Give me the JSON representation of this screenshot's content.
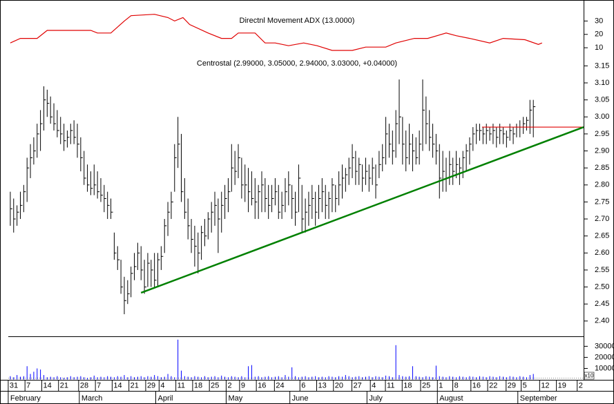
{
  "x_axis": {
    "xlim": [
      -0.6,
      171
    ],
    "xticks": [
      {
        "value": 0,
        "label": "31"
      },
      {
        "value": 5,
        "label": "7"
      },
      {
        "value": 10,
        "label": "14"
      },
      {
        "value": 15,
        "label": "21"
      },
      {
        "value": 21,
        "label": "28"
      },
      {
        "value": 26,
        "label": "7"
      },
      {
        "value": 31,
        "label": "14"
      },
      {
        "value": 36,
        "label": "21"
      },
      {
        "value": 41,
        "label": "29"
      },
      {
        "value": 45,
        "label": "4"
      },
      {
        "value": 50,
        "label": "11"
      },
      {
        "value": 55,
        "label": "18"
      },
      {
        "value": 60,
        "label": "25"
      },
      {
        "value": 65,
        "label": "2"
      },
      {
        "value": 69,
        "label": "9"
      },
      {
        "value": 74,
        "label": "16"
      },
      {
        "value": 79.4,
        "label": "24"
      },
      {
        "value": 87,
        "label": "6"
      },
      {
        "value": 92,
        "label": "13"
      },
      {
        "value": 97,
        "label": "20"
      },
      {
        "value": 102.5,
        "label": "27"
      },
      {
        "value": 108,
        "label": "4"
      },
      {
        "value": 112.5,
        "label": "11"
      },
      {
        "value": 117.5,
        "label": "18"
      },
      {
        "value": 123,
        "label": "25"
      },
      {
        "value": 128,
        "label": "1"
      },
      {
        "value": 132.6,
        "label": "8"
      },
      {
        "value": 138,
        "label": "16"
      },
      {
        "value": 143,
        "label": "22"
      },
      {
        "value": 148.5,
        "label": "29"
      },
      {
        "value": 153,
        "label": "5"
      },
      {
        "value": 158.5,
        "label": "12"
      },
      {
        "value": 163.5,
        "label": "19"
      },
      {
        "value": 169.7,
        "label": "2"
      }
    ],
    "months": [
      {
        "value": 0,
        "label": "February"
      },
      {
        "value": 21.2,
        "label": "March"
      },
      {
        "value": 44,
        "label": "April"
      },
      {
        "value": 65,
        "label": "May"
      },
      {
        "value": 84,
        "label": "June"
      },
      {
        "value": 107,
        "label": "July"
      },
      {
        "value": 128,
        "label": "August"
      },
      {
        "value": 152,
        "label": "September"
      }
    ]
  },
  "chart_data": [
    {
      "type": "line",
      "title": "Directnl Movement ADX (13.0000)",
      "color": "#e00000",
      "ylim": [
        0,
        39
      ],
      "yticks": [
        10,
        20,
        30
      ],
      "x": [
        0,
        3,
        8,
        11,
        24,
        26,
        30,
        34,
        36,
        43,
        47,
        49,
        51.5,
        53.5,
        59,
        63,
        66,
        68,
        73,
        76,
        79,
        83,
        87.5,
        91.5,
        96,
        102,
        106,
        112,
        115,
        120.5,
        124.5,
        130,
        133,
        137,
        143,
        147,
        153.5,
        157.5,
        158.6
      ],
      "values": [
        13.6,
        17,
        17,
        23,
        23,
        21,
        21,
        30,
        34,
        35,
        32.6,
        30,
        32.6,
        27.4,
        21,
        17,
        17,
        21,
        21,
        13.6,
        13.6,
        11.5,
        13.6,
        11.5,
        8,
        8,
        10.5,
        10.5,
        13.6,
        17,
        17,
        21,
        19,
        17,
        13.6,
        17,
        16,
        12.5,
        13.6
      ]
    },
    {
      "type": "ohlc",
      "title": "Centrostal (2.99000, 3.05000, 2.94000, 3.03000, +0.04000)",
      "color": "#000000",
      "ylim": [
        2.355,
        3.165
      ],
      "yticks": [
        {
          "value": 2.4,
          "label": "2.40"
        },
        {
          "value": 2.45,
          "label": "2.45"
        },
        {
          "value": 2.5,
          "label": "2.50"
        },
        {
          "value": 2.55,
          "label": "2.55"
        },
        {
          "value": 2.6,
          "label": "2.60"
        },
        {
          "value": 2.65,
          "label": "2.65"
        },
        {
          "value": 2.7,
          "label": "2.70"
        },
        {
          "value": 2.75,
          "label": "2.75"
        },
        {
          "value": 2.8,
          "label": "2.80"
        },
        {
          "value": 2.85,
          "label": "2.85"
        },
        {
          "value": 2.9,
          "label": "2.90"
        },
        {
          "value": 2.95,
          "label": "2.95"
        },
        {
          "value": 3.0,
          "label": "3.00"
        },
        {
          "value": 3.05,
          "label": "3.05"
        },
        {
          "value": 3.1,
          "label": "3.10"
        },
        {
          "value": 3.15,
          "label": "3.15"
        }
      ],
      "bars": [
        [
          2.78,
          2.68,
          2.73
        ],
        [
          2.76,
          2.66,
          2.7
        ],
        [
          2.74,
          2.68,
          2.72
        ],
        [
          2.78,
          2.7,
          2.74
        ],
        [
          2.8,
          2.72,
          2.78
        ],
        [
          2.88,
          2.75,
          2.85
        ],
        [
          2.92,
          2.82,
          2.88
        ],
        [
          2.94,
          2.86,
          2.9
        ],
        [
          2.98,
          2.88,
          2.95
        ],
        [
          3.02,
          2.9,
          2.98
        ],
        [
          3.09,
          2.96,
          3.05
        ],
        [
          3.08,
          3.0,
          3.04
        ],
        [
          3.06,
          2.98,
          3.0
        ],
        [
          3.04,
          2.96,
          2.98
        ],
        [
          3.02,
          2.94,
          2.96
        ],
        [
          3.0,
          2.92,
          2.95
        ],
        [
          2.98,
          2.9,
          2.93
        ],
        [
          2.96,
          2.91,
          2.94
        ],
        [
          2.98,
          2.92,
          2.96
        ],
        [
          2.99,
          2.92,
          2.94
        ],
        [
          2.98,
          2.88,
          2.92
        ],
        [
          2.94,
          2.84,
          2.88
        ],
        [
          2.9,
          2.8,
          2.82
        ],
        [
          2.86,
          2.78,
          2.8
        ],
        [
          2.84,
          2.77,
          2.79
        ],
        [
          2.86,
          2.77,
          2.8
        ],
        [
          2.84,
          2.76,
          2.78
        ],
        [
          2.82,
          2.75,
          2.77
        ],
        [
          2.8,
          2.72,
          2.76
        ],
        [
          2.78,
          2.7,
          2.74
        ],
        [
          2.76,
          2.7,
          2.72
        ],
        [
          2.66,
          2.58,
          2.6
        ],
        [
          2.62,
          2.55,
          2.58
        ],
        [
          2.58,
          2.48,
          2.5
        ],
        [
          2.53,
          2.42,
          2.46
        ],
        [
          2.52,
          2.45,
          2.48
        ],
        [
          2.56,
          2.47,
          2.54
        ],
        [
          2.6,
          2.52,
          2.56
        ],
        [
          2.63,
          2.55,
          2.6
        ],
        [
          2.62,
          2.52,
          2.55
        ],
        [
          2.58,
          2.48,
          2.5
        ],
        [
          2.6,
          2.5,
          2.57
        ],
        [
          2.58,
          2.5,
          2.55
        ],
        [
          2.6,
          2.5,
          2.52
        ],
        [
          2.6,
          2.5,
          2.58
        ],
        [
          2.62,
          2.55,
          2.59
        ],
        [
          2.7,
          2.6,
          2.68
        ],
        [
          2.75,
          2.65,
          2.72
        ],
        [
          2.78,
          2.7,
          2.75
        ],
        [
          2.92,
          2.78,
          2.88
        ],
        [
          3.0,
          2.85,
          2.92
        ],
        [
          2.95,
          2.75,
          2.78
        ],
        [
          2.82,
          2.7,
          2.72
        ],
        [
          2.76,
          2.64,
          2.68
        ],
        [
          2.7,
          2.6,
          2.64
        ],
        [
          2.68,
          2.56,
          2.62
        ],
        [
          2.66,
          2.54,
          2.6
        ],
        [
          2.68,
          2.58,
          2.66
        ],
        [
          2.7,
          2.62,
          2.65
        ],
        [
          2.72,
          2.64,
          2.7
        ],
        [
          2.75,
          2.66,
          2.72
        ],
        [
          2.78,
          2.68,
          2.74
        ],
        [
          2.76,
          2.6,
          2.7
        ],
        [
          2.78,
          2.66,
          2.74
        ],
        [
          2.8,
          2.7,
          2.76
        ],
        [
          2.82,
          2.72,
          2.78
        ],
        [
          2.92,
          2.78,
          2.85
        ],
        [
          2.9,
          2.8,
          2.84
        ],
        [
          2.92,
          2.82,
          2.88
        ],
        [
          2.88,
          2.76,
          2.8
        ],
        [
          2.86,
          2.75,
          2.8
        ],
        [
          2.85,
          2.72,
          2.78
        ],
        [
          2.84,
          2.74,
          2.76
        ],
        [
          2.82,
          2.7,
          2.75
        ],
        [
          2.8,
          2.7,
          2.78
        ],
        [
          2.84,
          2.72,
          2.8
        ],
        [
          2.82,
          2.72,
          2.76
        ],
        [
          2.8,
          2.7,
          2.74
        ],
        [
          2.8,
          2.72,
          2.76
        ],
        [
          2.82,
          2.74,
          2.78
        ],
        [
          2.8,
          2.7,
          2.72
        ],
        [
          2.78,
          2.7,
          2.74
        ],
        [
          2.82,
          2.72,
          2.78
        ],
        [
          2.84,
          2.74,
          2.8
        ],
        [
          2.8,
          2.7,
          2.76
        ],
        [
          2.78,
          2.68,
          2.72
        ],
        [
          2.86,
          2.72,
          2.82
        ],
        [
          2.8,
          2.66,
          2.7
        ],
        [
          2.76,
          2.66,
          2.72
        ],
        [
          2.78,
          2.68,
          2.74
        ],
        [
          2.8,
          2.7,
          2.76
        ],
        [
          2.78,
          2.68,
          2.72
        ],
        [
          2.8,
          2.7,
          2.76
        ],
        [
          2.82,
          2.72,
          2.78
        ],
        [
          2.8,
          2.7,
          2.74
        ],
        [
          2.78,
          2.7,
          2.76
        ],
        [
          2.82,
          2.72,
          2.8
        ],
        [
          2.8,
          2.72,
          2.76
        ],
        [
          2.84,
          2.74,
          2.8
        ],
        [
          2.86,
          2.76,
          2.82
        ],
        [
          2.85,
          2.78,
          2.83
        ],
        [
          2.88,
          2.8,
          2.85
        ],
        [
          2.92,
          2.82,
          2.88
        ],
        [
          2.9,
          2.8,
          2.84
        ],
        [
          2.88,
          2.8,
          2.86
        ],
        [
          2.86,
          2.78,
          2.82
        ],
        [
          2.88,
          2.8,
          2.84
        ],
        [
          2.86,
          2.78,
          2.82
        ],
        [
          2.88,
          2.8,
          2.85
        ],
        [
          2.86,
          2.76,
          2.8
        ],
        [
          2.9,
          2.82,
          2.86
        ],
        [
          2.92,
          2.84,
          2.88
        ],
        [
          3.0,
          2.86,
          2.95
        ],
        [
          2.98,
          2.88,
          2.92
        ],
        [
          2.96,
          2.86,
          2.9
        ],
        [
          3.02,
          2.88,
          2.98
        ],
        [
          3.11,
          2.92,
          3.0
        ],
        [
          3.0,
          2.86,
          2.92
        ],
        [
          2.96,
          2.84,
          2.88
        ],
        [
          2.98,
          2.86,
          2.92
        ],
        [
          2.95,
          2.84,
          2.9
        ],
        [
          2.94,
          2.86,
          2.88
        ],
        [
          2.96,
          2.86,
          2.92
        ],
        [
          3.11,
          2.9,
          3.02
        ],
        [
          3.06,
          2.92,
          2.98
        ],
        [
          3.02,
          2.9,
          2.94
        ],
        [
          2.98,
          2.88,
          2.92
        ],
        [
          2.95,
          2.86,
          2.9
        ],
        [
          2.92,
          2.76,
          2.82
        ],
        [
          2.9,
          2.78,
          2.84
        ],
        [
          2.88,
          2.78,
          2.82
        ],
        [
          2.9,
          2.8,
          2.86
        ],
        [
          2.88,
          2.8,
          2.84
        ],
        [
          2.9,
          2.82,
          2.86
        ],
        [
          2.88,
          2.8,
          2.85
        ],
        [
          2.9,
          2.82,
          2.88
        ],
        [
          2.92,
          2.84,
          2.9
        ],
        [
          2.94,
          2.86,
          2.92
        ],
        [
          2.97,
          2.9,
          2.95
        ],
        [
          2.98,
          2.92,
          2.96
        ],
        [
          2.98,
          2.93,
          2.96
        ],
        [
          2.97,
          2.92,
          2.95
        ],
        [
          2.98,
          2.92,
          2.96
        ],
        [
          2.97,
          2.93,
          2.95
        ],
        [
          2.98,
          2.92,
          2.96
        ],
        [
          2.97,
          2.91,
          2.94
        ],
        [
          2.98,
          2.92,
          2.96
        ],
        [
          2.97,
          2.92,
          2.95
        ],
        [
          2.96,
          2.91,
          2.94
        ],
        [
          2.98,
          2.93,
          2.96
        ],
        [
          2.97,
          2.92,
          2.95
        ],
        [
          2.98,
          2.94,
          2.97
        ],
        [
          2.99,
          2.94,
          2.97
        ],
        [
          3.0,
          2.95,
          2.98
        ],
        [
          3.0,
          2.96,
          2.99
        ],
        [
          3.05,
          2.95,
          3.02
        ],
        [
          3.05,
          2.94,
          3.03
        ]
      ],
      "lines": [
        {
          "color": "#e00000",
          "x": [
            140.7,
            171
          ],
          "values": [
            2.97,
            2.97
          ]
        },
        {
          "color": "#008000",
          "x": [
            39,
            171
          ],
          "values": [
            2.483,
            2.97
          ]
        }
      ]
    },
    {
      "type": "bar",
      "color": "#0000ff",
      "ylim": [
        0,
        39000
      ],
      "yticks": [
        10000,
        20000,
        30000
      ],
      "scale_label": "x10",
      "values": [
        3000,
        2000,
        4000,
        2500,
        3000,
        12000,
        5000,
        7000,
        10000,
        9000,
        4000,
        2000,
        2500,
        2000,
        3000,
        2000,
        1500,
        2000,
        3000,
        2000,
        2500,
        3000,
        2000,
        1500,
        2000,
        3500,
        2000,
        2500,
        2000,
        3000,
        2500,
        2000,
        3000,
        2500,
        4000,
        2000,
        3000,
        2000,
        2500,
        3000,
        2000,
        3000,
        2500,
        4000,
        3000,
        2000,
        2500,
        5000,
        3000,
        2000,
        36000,
        8000,
        3000,
        2500,
        2000,
        3000,
        2500,
        2000,
        3000,
        2000,
        2500,
        3000,
        2000,
        3500,
        2500,
        2000,
        3000,
        2500,
        2000,
        3000,
        2000,
        12000,
        13000,
        2500,
        3000,
        2000,
        2500,
        3000,
        2000,
        2500,
        3000,
        2000,
        4000,
        2500,
        11000,
        3000,
        2000,
        2500,
        3000,
        2000,
        2500,
        3000,
        2000,
        2500,
        2000,
        3000,
        2500,
        2000,
        3000,
        2500,
        4000,
        3000,
        2000,
        2500,
        3000,
        2000,
        2500,
        3000,
        2000,
        3000,
        2500,
        2000,
        3500,
        3000,
        2000,
        31000,
        4000,
        3000,
        2500,
        3000,
        12000,
        3000,
        2500,
        2000,
        3000,
        2500,
        2000,
        12500,
        3000,
        2500,
        2000,
        3000,
        2500,
        2000,
        3000,
        2500,
        2000,
        3000,
        2500,
        2000,
        3000,
        2500,
        2000,
        3000,
        2500,
        2000,
        3000,
        2500,
        2000,
        3000,
        2500,
        2000,
        3000,
        2500,
        2000,
        4000,
        5000
      ]
    }
  ]
}
